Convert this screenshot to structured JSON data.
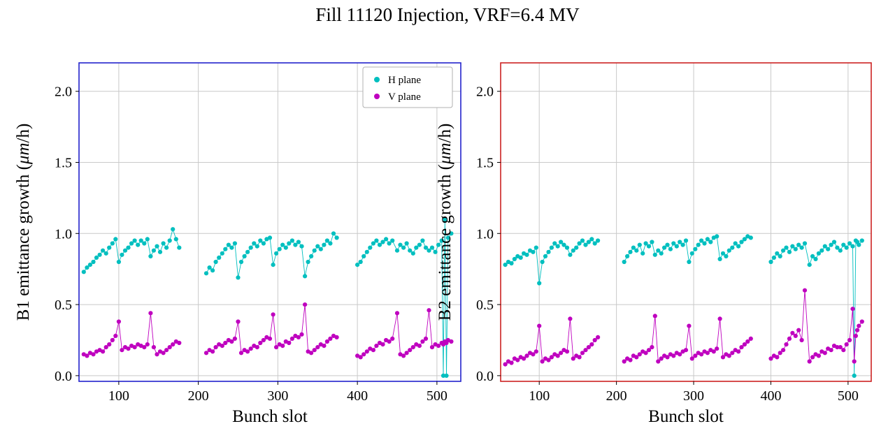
{
  "title": "Fill 11120 Injection, VRF=6.4 MV",
  "colors": {
    "h_plane": "#00bfbf",
    "v_plane": "#bf00bf",
    "b1_spine": "#2222cc",
    "b2_spine": "#cc2222",
    "grid": "#c9c9c9",
    "legend_border": "#b0b0b0",
    "text": "#000000"
  },
  "bunch_slots": [
    56,
    60,
    64,
    68,
    72,
    76,
    80,
    84,
    88,
    92,
    96,
    100,
    104,
    108,
    112,
    116,
    120,
    124,
    128,
    132,
    136,
    140,
    144,
    148,
    152,
    156,
    160,
    164,
    168,
    172,
    176,
    210,
    214,
    218,
    222,
    226,
    230,
    234,
    238,
    242,
    246,
    250,
    254,
    258,
    262,
    266,
    270,
    274,
    278,
    282,
    286,
    290,
    294,
    298,
    302,
    306,
    310,
    314,
    318,
    322,
    326,
    330,
    334,
    338,
    342,
    346,
    350,
    354,
    358,
    362,
    366,
    370,
    374,
    400,
    404,
    408,
    412,
    416,
    420,
    424,
    428,
    432,
    436,
    440,
    444,
    450,
    454,
    458,
    462,
    466,
    470,
    474,
    478,
    482,
    486,
    490,
    494,
    498,
    502,
    506,
    508,
    510,
    512,
    514,
    518
  ],
  "chart_data": [
    {
      "type": "scatter",
      "id": "b1",
      "xlabel": "Bunch slot",
      "ylabel": "B1 emittance growth (μm/h)",
      "xlim": [
        50,
        530
      ],
      "ylim": [
        -0.04,
        2.2
      ],
      "xticks": [
        100,
        200,
        300,
        400,
        500
      ],
      "yticks": [
        0.0,
        0.5,
        1.0,
        1.5,
        2.0
      ],
      "ytick_labels": [
        "0.0",
        "0.5",
        "1.0",
        "1.5",
        "2.0"
      ],
      "grid": true,
      "spine_color": "#2222cc",
      "legend": {
        "show": true,
        "position": "upper right",
        "entries": [
          "H plane",
          "V plane"
        ]
      },
      "series": [
        {
          "name": "H plane",
          "color": "#00bfbf",
          "y": [
            0.73,
            0.76,
            0.78,
            0.8,
            0.83,
            0.85,
            0.88,
            0.86,
            0.9,
            0.93,
            0.96,
            0.8,
            0.85,
            0.88,
            0.9,
            0.93,
            0.95,
            0.92,
            0.95,
            0.93,
            0.96,
            0.84,
            0.88,
            0.91,
            0.87,
            0.93,
            0.9,
            0.95,
            1.03,
            0.96,
            0.9,
            0.72,
            0.76,
            0.74,
            0.8,
            0.83,
            0.86,
            0.89,
            0.92,
            0.9,
            0.93,
            0.69,
            0.8,
            0.84,
            0.87,
            0.9,
            0.93,
            0.91,
            0.95,
            0.93,
            0.96,
            0.97,
            0.78,
            0.86,
            0.89,
            0.92,
            0.9,
            0.93,
            0.95,
            0.92,
            0.94,
            0.91,
            0.7,
            0.8,
            0.84,
            0.88,
            0.91,
            0.89,
            0.92,
            0.95,
            0.93,
            1.0,
            0.97,
            0.78,
            0.8,
            0.84,
            0.87,
            0.9,
            0.93,
            0.95,
            0.92,
            0.94,
            0.96,
            0.93,
            0.95,
            0.88,
            0.92,
            0.9,
            0.93,
            0.88,
            0.86,
            0.9,
            0.92,
            0.95,
            0.9,
            0.88,
            0.9,
            0.87,
            0.92,
            0.95,
            0.0,
            1.1,
            0.0,
            0.97,
            1.0
          ]
        },
        {
          "name": "V plane",
          "color": "#bf00bf",
          "y": [
            0.15,
            0.14,
            0.16,
            0.15,
            0.17,
            0.18,
            0.17,
            0.2,
            0.22,
            0.25,
            0.28,
            0.38,
            0.18,
            0.2,
            0.19,
            0.21,
            0.2,
            0.22,
            0.21,
            0.2,
            0.22,
            0.44,
            0.2,
            0.15,
            0.17,
            0.16,
            0.18,
            0.2,
            0.22,
            0.24,
            0.23,
            0.16,
            0.18,
            0.17,
            0.2,
            0.22,
            0.21,
            0.23,
            0.25,
            0.24,
            0.26,
            0.38,
            0.16,
            0.18,
            0.17,
            0.19,
            0.21,
            0.2,
            0.23,
            0.25,
            0.27,
            0.26,
            0.43,
            0.2,
            0.22,
            0.21,
            0.24,
            0.23,
            0.26,
            0.28,
            0.27,
            0.29,
            0.5,
            0.17,
            0.16,
            0.18,
            0.2,
            0.22,
            0.21,
            0.24,
            0.26,
            0.28,
            0.27,
            0.14,
            0.13,
            0.15,
            0.17,
            0.19,
            0.18,
            0.21,
            0.23,
            0.22,
            0.25,
            0.24,
            0.26,
            0.44,
            0.15,
            0.14,
            0.16,
            0.18,
            0.2,
            0.22,
            0.21,
            0.24,
            0.26,
            0.46,
            0.2,
            0.22,
            0.21,
            0.23,
            0.22,
            0.24,
            0.23,
            0.25,
            0.24
          ]
        }
      ]
    },
    {
      "type": "scatter",
      "id": "b2",
      "xlabel": "Bunch slot",
      "ylabel": "B2 emittance growth (μm/h)",
      "xlim": [
        50,
        530
      ],
      "ylim": [
        -0.04,
        2.2
      ],
      "xticks": [
        100,
        200,
        300,
        400,
        500
      ],
      "yticks": [
        0.0,
        0.5,
        1.0,
        1.5,
        2.0
      ],
      "ytick_labels": [
        "0.0",
        "0.5",
        "1.0",
        "1.5",
        "2.0"
      ],
      "grid": true,
      "spine_color": "#cc2222",
      "legend": {
        "show": false,
        "entries": []
      },
      "series": [
        {
          "name": "H plane",
          "color": "#00bfbf",
          "y": [
            0.78,
            0.8,
            0.79,
            0.82,
            0.84,
            0.83,
            0.86,
            0.85,
            0.88,
            0.87,
            0.9,
            0.65,
            0.8,
            0.84,
            0.87,
            0.9,
            0.93,
            0.91,
            0.94,
            0.92,
            0.9,
            0.85,
            0.88,
            0.9,
            0.93,
            0.95,
            0.92,
            0.94,
            0.96,
            0.93,
            0.95,
            0.8,
            0.84,
            0.87,
            0.9,
            0.88,
            0.92,
            0.86,
            0.93,
            0.91,
            0.94,
            0.85,
            0.88,
            0.86,
            0.9,
            0.92,
            0.89,
            0.93,
            0.91,
            0.94,
            0.92,
            0.95,
            0.8,
            0.86,
            0.89,
            0.92,
            0.95,
            0.93,
            0.96,
            0.94,
            0.97,
            0.98,
            0.82,
            0.86,
            0.84,
            0.88,
            0.9,
            0.93,
            0.91,
            0.94,
            0.96,
            0.98,
            0.97,
            0.8,
            0.83,
            0.86,
            0.84,
            0.88,
            0.9,
            0.87,
            0.91,
            0.89,
            0.92,
            0.9,
            0.93,
            0.78,
            0.84,
            0.82,
            0.86,
            0.88,
            0.91,
            0.89,
            0.92,
            0.94,
            0.9,
            0.88,
            0.92,
            0.9,
            0.93,
            0.91,
            0.0,
            0.95,
            0.94,
            0.92,
            0.95
          ]
        },
        {
          "name": "V plane",
          "color": "#bf00bf",
          "y": [
            0.08,
            0.1,
            0.09,
            0.12,
            0.11,
            0.13,
            0.12,
            0.14,
            0.16,
            0.15,
            0.17,
            0.35,
            0.1,
            0.12,
            0.11,
            0.13,
            0.15,
            0.14,
            0.16,
            0.18,
            0.17,
            0.4,
            0.12,
            0.14,
            0.13,
            0.16,
            0.18,
            0.2,
            0.22,
            0.25,
            0.27,
            0.1,
            0.12,
            0.11,
            0.14,
            0.13,
            0.15,
            0.17,
            0.16,
            0.18,
            0.2,
            0.42,
            0.1,
            0.12,
            0.14,
            0.13,
            0.15,
            0.14,
            0.16,
            0.15,
            0.17,
            0.18,
            0.35,
            0.12,
            0.14,
            0.16,
            0.15,
            0.17,
            0.16,
            0.18,
            0.17,
            0.19,
            0.4,
            0.13,
            0.15,
            0.14,
            0.16,
            0.18,
            0.17,
            0.2,
            0.22,
            0.24,
            0.26,
            0.12,
            0.14,
            0.13,
            0.16,
            0.18,
            0.22,
            0.26,
            0.3,
            0.28,
            0.32,
            0.25,
            0.6,
            0.1,
            0.13,
            0.15,
            0.14,
            0.17,
            0.16,
            0.19,
            0.18,
            0.21,
            0.2,
            0.2,
            0.18,
            0.22,
            0.25,
            0.47,
            0.1,
            0.28,
            0.32,
            0.35,
            0.38
          ]
        }
      ]
    }
  ]
}
